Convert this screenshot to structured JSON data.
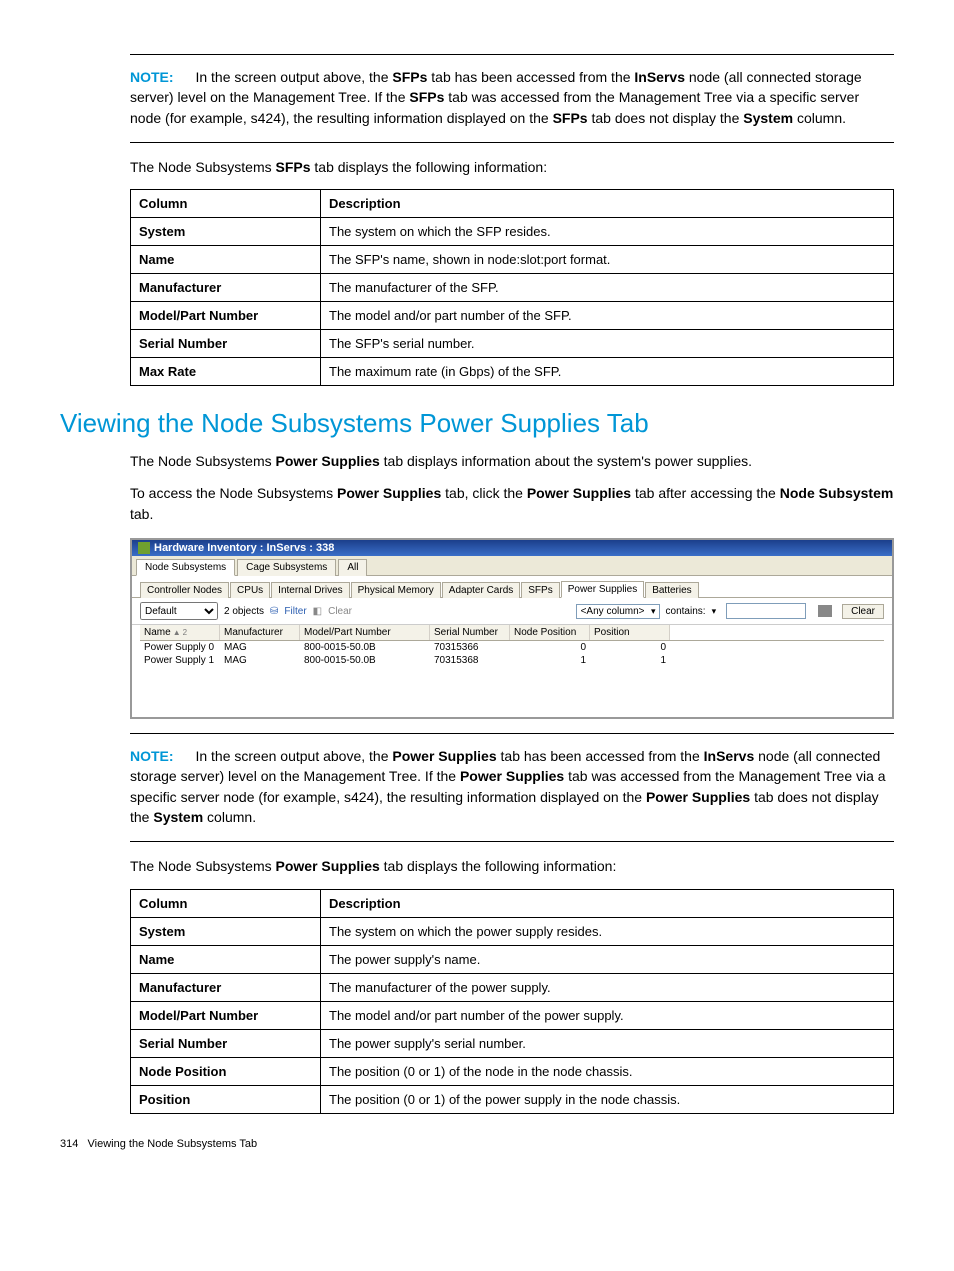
{
  "note1": {
    "label": "NOTE:",
    "pre": "In the screen output above, the ",
    "b1": "SFPs",
    "mid1": " tab has been accessed from the ",
    "b2": "InServs",
    "mid2": " node (all connected storage server) level on the Management Tree. If the ",
    "b3": "SFPs",
    "mid3": " tab was accessed from the Management Tree via a specific server node (for example, s424), the resulting information displayed on the ",
    "b4": "SFPs",
    "mid4": " tab does not display the ",
    "b5": "System",
    "post": " column."
  },
  "intro1a": "The Node Subsystems ",
  "intro1b": "SFPs",
  "intro1c": " tab displays the following information:",
  "table1_headers": {
    "col": "Column",
    "desc": "Description"
  },
  "table1_rows": [
    {
      "c": "System",
      "d": "The system on which the SFP resides."
    },
    {
      "c": "Name",
      "d": "The SFP's name, shown in node:slot:port format."
    },
    {
      "c": "Manufacturer",
      "d": "The manufacturer of the SFP."
    },
    {
      "c": "Model/Part Number",
      "d": "The model and/or part number of the SFP."
    },
    {
      "c": "Serial Number",
      "d": "The SFP's serial number."
    },
    {
      "c": "Max Rate",
      "d": "The maximum rate (in Gbps) of the SFP."
    }
  ],
  "heading": "Viewing the Node Subsystems Power Supplies Tab",
  "para1a": "The Node Subsystems ",
  "para1b": "Power Supplies",
  "para1c": " tab displays information about the system's power supplies.",
  "para2a": "To access the Node Subsystems ",
  "para2b": "Power Supplies",
  "para2c": " tab, click the ",
  "para2d": "Power Supplies",
  "para2e": " tab after accessing the ",
  "para2f": "Node Subsystem",
  "para2g": " tab.",
  "app": {
    "title": "Hardware Inventory : InServs : 338",
    "outer_tabs": [
      "Node Subsystems",
      "Cage Subsystems",
      "All"
    ],
    "outer_active": 0,
    "inner_tabs": [
      "Controller Nodes",
      "CPUs",
      "Internal Drives",
      "Physical Memory",
      "Adapter Cards",
      "SFPs",
      "Power Supplies",
      "Batteries"
    ],
    "inner_active": 6,
    "view_select": "Default",
    "obj_count": "2 objects",
    "filter_label": "Filter",
    "clear_label": "Clear",
    "filter_col": "<Any column>",
    "filter_op": "contains:",
    "clear_btn": "Clear",
    "grid_headers": [
      "Name",
      "Manufacturer",
      "Model/Part Number",
      "Serial Number",
      "Node Position",
      "Position"
    ],
    "sort_badge": "2",
    "grid_rows": [
      {
        "name": "Power Supply 0",
        "mfr": "MAG",
        "model": "800-0015-50.0B",
        "sn": "70315366",
        "np": "0",
        "pos": "0"
      },
      {
        "name": "Power Supply 1",
        "mfr": "MAG",
        "model": "800-0015-50.0B",
        "sn": "70315368",
        "np": "1",
        "pos": "1"
      }
    ]
  },
  "note2": {
    "label": "NOTE:",
    "pre": "In the screen output above, the ",
    "b1": "Power Supplies",
    "mid1": " tab has been accessed from the ",
    "b2": "InServs",
    "mid2": " node (all connected storage server) level on the Management Tree. If the ",
    "b3": "Power Supplies",
    "mid3": " tab was accessed from the Management Tree via a specific server node (for example, s424), the resulting information displayed on the ",
    "b4": "Power Supplies",
    "mid4": " tab does not display the ",
    "b5": "System",
    "post": " column."
  },
  "intro2a": "The Node Subsystems ",
  "intro2b": "Power Supplies",
  "intro2c": " tab displays the following information:",
  "table2_headers": {
    "col": "Column",
    "desc": "Description"
  },
  "table2_rows": [
    {
      "c": "System",
      "d": "The system on which the power supply resides."
    },
    {
      "c": "Name",
      "d": "The power supply's name."
    },
    {
      "c": "Manufacturer",
      "d": "The manufacturer of the power supply."
    },
    {
      "c": "Model/Part Number",
      "d": "The model and/or part number of the power supply."
    },
    {
      "c": "Serial Number",
      "d": "The power supply's serial number."
    },
    {
      "c": "Node Position",
      "d": "The position (0 or 1) of the node in the node chassis."
    },
    {
      "c": "Position",
      "d": "The position (0 or 1) of the power supply in the node chassis."
    }
  ],
  "footer": {
    "page": "314",
    "title": "Viewing the Node Subsystems Tab"
  }
}
